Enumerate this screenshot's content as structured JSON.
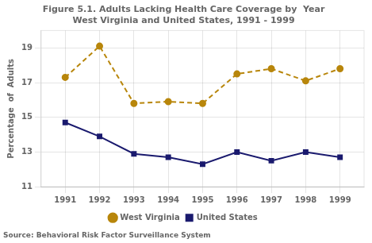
{
  "chart_data": {
    "type": "line",
    "title": "Figure 5.1. Adults Lacking Health Care Coverage by  Year",
    "subtitle": "West Virginia and United States, 1991 - 1999",
    "annotations": [
      "Source: Behavioral Risk Factor Surveillance System"
    ],
    "y_label": "Percentage  of  Adults",
    "x": [
      1991,
      1992,
      1993,
      1994,
      1995,
      1996,
      1997,
      1998,
      1999
    ],
    "series": [
      {
        "name": "West Virginia",
        "color": "#b8860b",
        "marker": "circle",
        "line_style": "dashed",
        "values": [
          17.3,
          19.1,
          15.8,
          15.9,
          15.8,
          17.5,
          17.8,
          17.1,
          17.8
        ]
      },
      {
        "name": "United States",
        "color": "#1a1a6e",
        "marker": "square",
        "line_style": "solid",
        "values": [
          14.7,
          13.9,
          12.9,
          12.7,
          12.3,
          13.0,
          12.5,
          13.0,
          12.7
        ]
      }
    ],
    "xlim": [
      1990.3,
      1999.7
    ],
    "xticks": [
      1991,
      1992,
      1993,
      1994,
      1995,
      1996,
      1997,
      1998,
      1999
    ],
    "ylim": [
      11,
      20
    ],
    "yticks": [
      11,
      13,
      15,
      17,
      19
    ],
    "grid": true,
    "legend": "bottom"
  }
}
